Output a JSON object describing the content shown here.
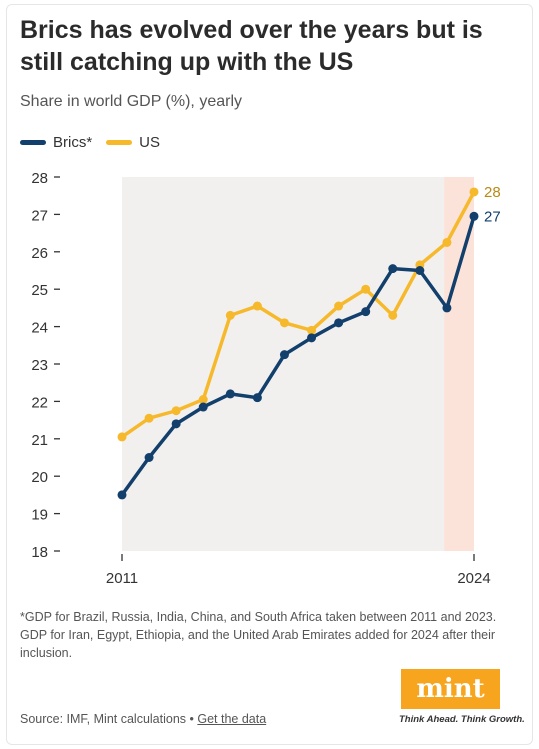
{
  "title": "Brics has evolved over the years but is still catching up with the US",
  "subtitle": "Share in world GDP (%), yearly",
  "footnote": "*GDP for Brazil, Russia, India, China, and South Africa taken between 2011 and 2023. GDP for Iran, Egypt, Ethiopia, and the United Arab Emirates added for 2024 after their inclusion.",
  "source_prefix": "Source: IMF, Mint calculations • ",
  "source_link": "Get the data",
  "logo_text": "mint",
  "logo_tagline": "Think Ahead. Think Growth.",
  "colors": {
    "brics": "#123f6b",
    "us": "#f6b92c",
    "plot_bg": "#f2f0ef",
    "highlight": "#fce3d9"
  },
  "chart_data": {
    "type": "line",
    "title": "Brics has evolved over the years but is still catching up with the US",
    "subtitle": "Share in world GDP (%), yearly",
    "x": [
      2011,
      2012,
      2013,
      2014,
      2015,
      2016,
      2017,
      2018,
      2019,
      2020,
      2021,
      2022,
      2023,
      2024
    ],
    "x_tick_labels": [
      "2011",
      "2024"
    ],
    "ylim": [
      18,
      28
    ],
    "y_ticks": [
      18,
      19,
      20,
      21,
      22,
      23,
      24,
      25,
      26,
      27,
      28
    ],
    "highlight_x": 2024,
    "legend": "top-left",
    "series": [
      {
        "name": "Brics*",
        "color": "#123f6b",
        "values": [
          19.5,
          20.5,
          21.4,
          21.85,
          22.2,
          22.1,
          23.25,
          23.7,
          24.1,
          24.4,
          25.55,
          25.5,
          24.5,
          26.95
        ],
        "end_label": "27"
      },
      {
        "name": "US",
        "color": "#f6b92c",
        "values": [
          21.05,
          21.55,
          21.75,
          22.05,
          24.3,
          24.55,
          24.1,
          23.9,
          24.55,
          25.0,
          24.3,
          25.65,
          26.25,
          27.6
        ],
        "end_label": "28"
      }
    ]
  }
}
